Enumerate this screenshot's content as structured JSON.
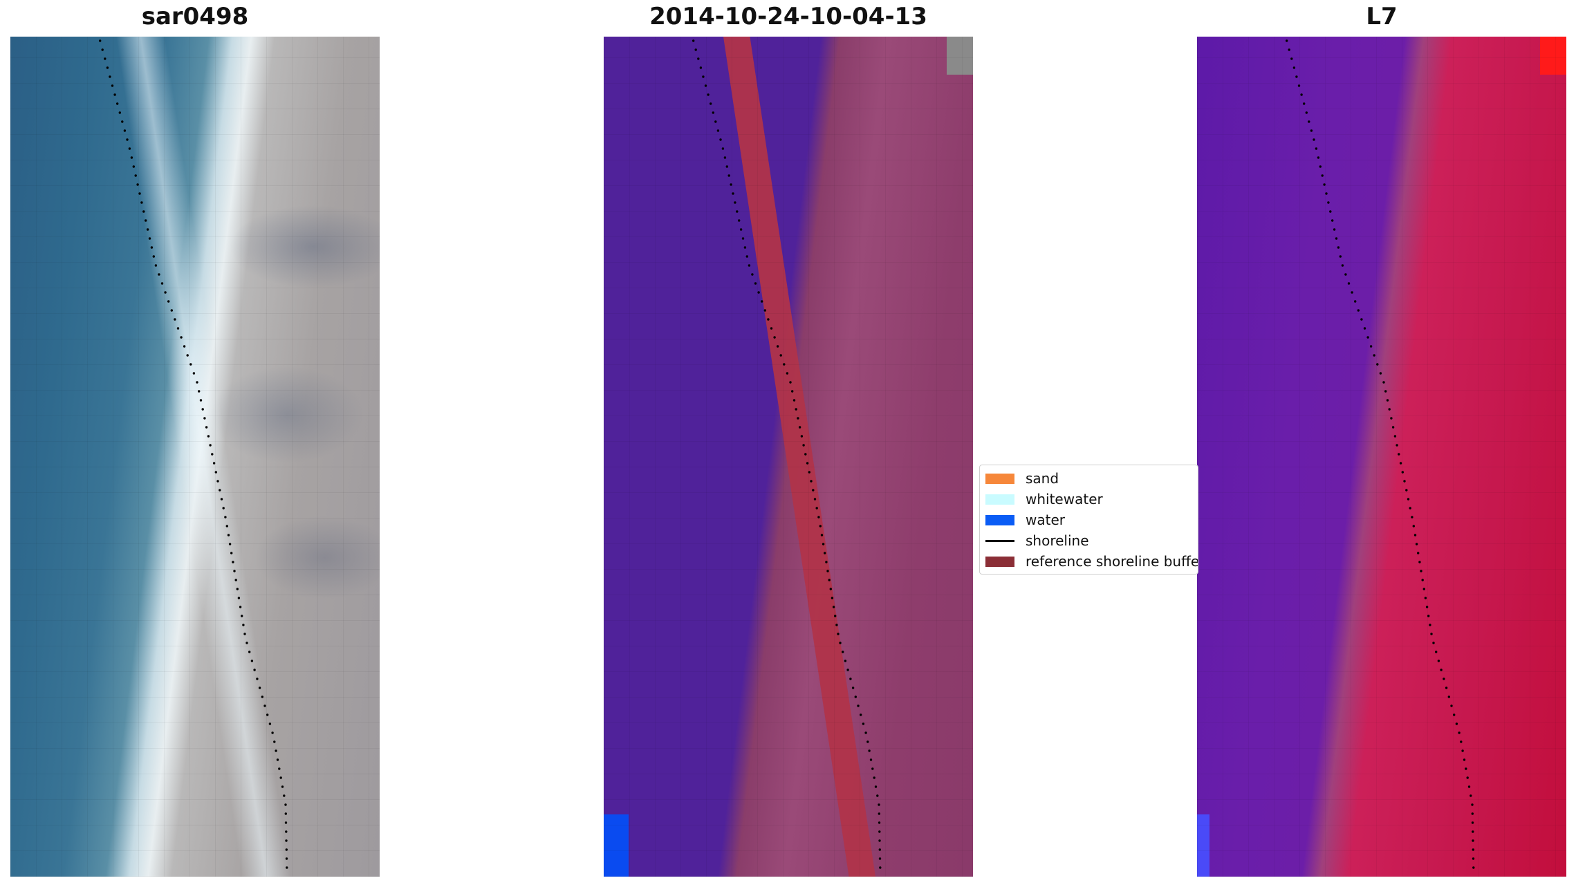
{
  "panels": [
    {
      "title": "sar0498"
    },
    {
      "title": "2014-10-24-10-04-13"
    },
    {
      "title": "L7"
    }
  ],
  "legend": {
    "items": [
      {
        "label": "sand",
        "color": "#f6873a",
        "kind": "patch"
      },
      {
        "label": "whitewater",
        "color": "#c9fbff",
        "kind": "patch"
      },
      {
        "label": "water",
        "color": "#0a5cf5",
        "kind": "patch"
      },
      {
        "label": "shoreline",
        "color": "#000000",
        "kind": "line"
      },
      {
        "label": "reference shoreline buffer",
        "color": "#8b2e36",
        "kind": "patch"
      }
    ]
  }
}
